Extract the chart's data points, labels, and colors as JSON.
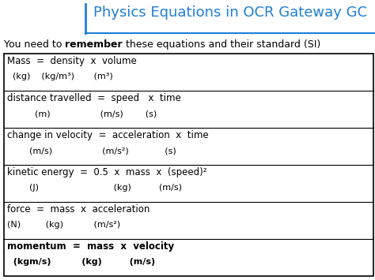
{
  "title": "Physics Equations in OCR Gateway GC",
  "title_color": "#1F7FD4",
  "bg_color": "#ffffff",
  "subtitle_parts": [
    {
      "text": "You need to ",
      "bold": false
    },
    {
      "text": "remember",
      "bold": true
    },
    {
      "text": " these equations and their standard (SI)",
      "bold": false
    }
  ],
  "table_rows": [
    {
      "line1": "Mass  =  density  x  volume",
      "line2": "  (kg)    (kg/m³)       (m³)",
      "bold": false
    },
    {
      "line1": "distance travelled  =  speed   x  time",
      "line2": "          (m)                  (m/s)        (s)",
      "bold": false
    },
    {
      "line1": "change in velocity  =  acceleration  x  time",
      "line2": "        (m/s)                  (m/s²)             (s)",
      "bold": false
    },
    {
      "line1": "kinetic energy  =  0.5  x  mass  x  (speed)²",
      "line2": "        (J)                           (kg)          (m/s)",
      "bold": false
    },
    {
      "line1": "force  =  mass  x  acceleration",
      "line2": "(N)         (kg)           (m/s²)",
      "bold": false
    },
    {
      "line1": "momentum  =  mass  x  velocity",
      "line2": "  (kgm/s)          (kg)         (m/s)",
      "bold": true
    }
  ],
  "font_size_title": 13,
  "font_size_subtitle": 9,
  "font_size_row_line1": 8.5,
  "font_size_row_line2": 8.0
}
